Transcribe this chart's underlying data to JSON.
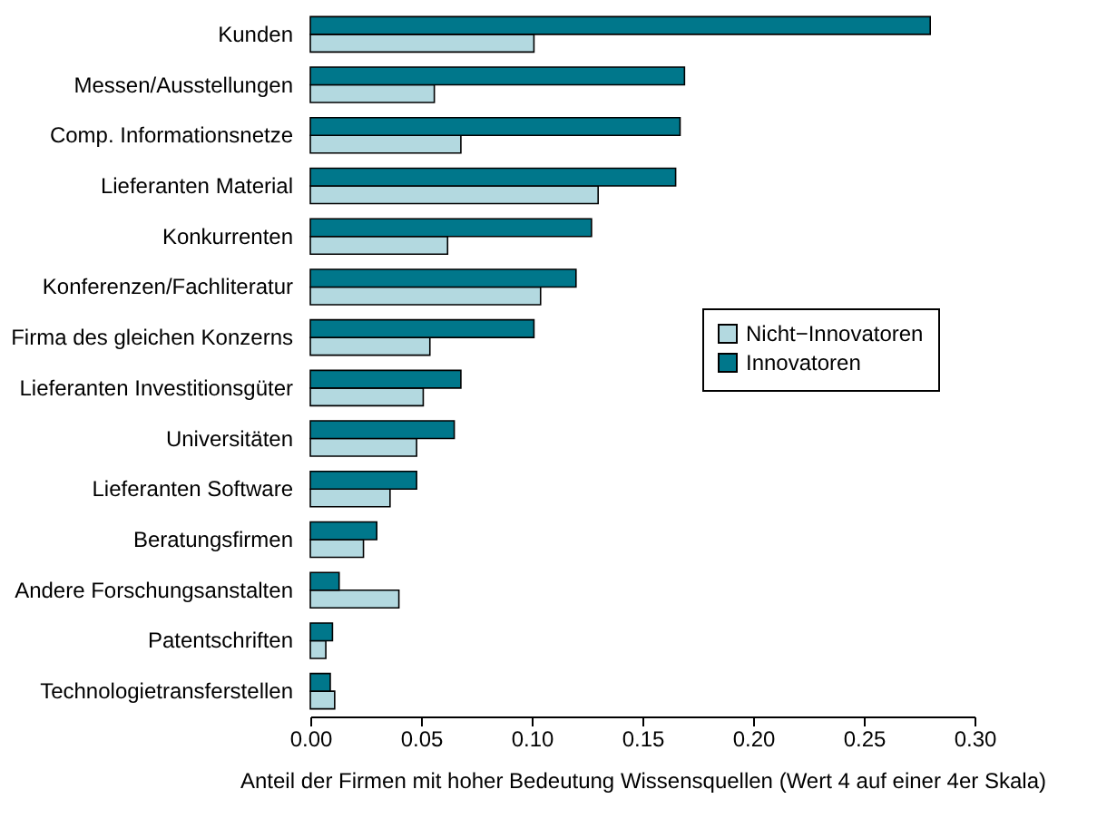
{
  "chart_data": {
    "type": "bar",
    "orientation": "horizontal",
    "xlabel": "Anteil der Firmen mit hoher Bedeutung Wissensquellen (Wert 4 auf einer 4er Skala)",
    "categories": [
      "Kunden",
      "Messen/Ausstellungen",
      "Comp. Informationsnetze",
      "Lieferanten Material",
      "Konkurrenten",
      "Konferenzen/Fachliteratur",
      "Firma des gleichen Konzerns",
      "Lieferanten Investitionsgüter",
      "Universitäten",
      "Lieferanten Software",
      "Beratungsfirmen",
      "Andere Forschungsanstalten",
      "Patentschriften",
      "Technologietransferstellen"
    ],
    "series": [
      {
        "name": "Nicht−Innovatoren",
        "color": "#b3d9e0",
        "values": [
          0.101,
          0.056,
          0.068,
          0.13,
          0.062,
          0.104,
          0.054,
          0.051,
          0.048,
          0.036,
          0.024,
          0.04,
          0.007,
          0.011
        ]
      },
      {
        "name": "Innovatoren",
        "color": "#00778b",
        "values": [
          0.28,
          0.169,
          0.167,
          0.165,
          0.127,
          0.12,
          0.101,
          0.068,
          0.065,
          0.048,
          0.03,
          0.013,
          0.01,
          0.009
        ]
      }
    ],
    "xlim": [
      0,
      0.3
    ],
    "xticks": [
      {
        "value": 0,
        "label": "0.00"
      },
      {
        "value": 0.05,
        "label": "0.05"
      },
      {
        "value": 0.1,
        "label": "0.10"
      },
      {
        "value": 0.15,
        "label": "0.15"
      },
      {
        "value": 0.2,
        "label": "0.20"
      },
      {
        "value": 0.25,
        "label": "0.25"
      },
      {
        "value": 0.3,
        "label": "0.30"
      }
    ],
    "grid": false,
    "legend": "right"
  }
}
